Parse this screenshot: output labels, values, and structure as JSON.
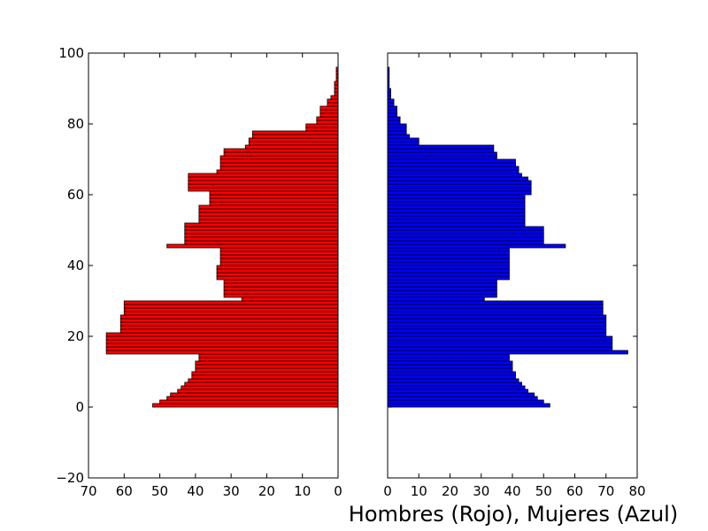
{
  "chart_data": {
    "type": "bar",
    "orientation": "horizontal",
    "xlabel": "Hombres (Rojo), Mujeres (Azul)",
    "grid": false,
    "shared_ylim": [
      -20,
      100
    ],
    "y_ticks": [
      100,
      80,
      60,
      40,
      20,
      0,
      -20
    ],
    "ages": [
      0,
      1,
      2,
      3,
      4,
      5,
      6,
      7,
      8,
      9,
      10,
      11,
      12,
      13,
      14,
      15,
      16,
      17,
      18,
      19,
      20,
      21,
      22,
      23,
      24,
      25,
      26,
      27,
      28,
      29,
      30,
      31,
      32,
      33,
      34,
      35,
      36,
      37,
      38,
      39,
      40,
      41,
      42,
      43,
      44,
      45,
      46,
      47,
      48,
      49,
      50,
      51,
      52,
      53,
      54,
      55,
      56,
      57,
      58,
      59,
      60,
      61,
      62,
      63,
      64,
      65,
      66,
      67,
      68,
      69,
      70,
      71,
      72,
      73,
      74,
      75,
      76,
      77,
      78,
      79,
      80,
      81,
      82,
      83,
      84,
      85,
      86,
      87,
      88,
      89,
      90,
      91,
      92,
      93,
      94,
      95
    ],
    "panels": [
      {
        "name": "hombres",
        "color": "#ff0000",
        "inverted_x": true,
        "xlim": [
          70,
          0
        ],
        "x_ticks": [
          70,
          60,
          50,
          40,
          30,
          20,
          10,
          0
        ],
        "values": [
          52,
          50,
          48,
          47,
          45,
          44,
          43,
          42,
          41,
          41,
          40,
          40,
          40,
          39,
          39,
          65,
          65,
          65,
          65,
          65,
          65,
          61,
          61,
          61,
          61,
          61,
          60,
          60,
          60,
          60,
          27,
          32,
          32,
          32,
          32,
          32,
          34,
          34,
          34,
          34,
          33,
          33,
          33,
          33,
          33,
          48,
          43,
          43,
          43,
          43,
          43,
          43,
          39,
          39,
          39,
          39,
          39,
          36,
          36,
          36,
          36,
          42,
          42,
          42,
          42,
          42,
          34,
          33,
          33,
          33,
          33,
          32,
          32,
          26,
          25,
          25,
          24,
          24,
          9,
          9,
          6,
          6,
          5,
          5,
          5,
          3,
          3,
          2,
          1,
          1,
          1,
          1,
          0.5,
          0.5,
          0.5,
          0.5
        ]
      },
      {
        "name": "mujeres",
        "color": "#0000ff",
        "inverted_x": false,
        "xlim": [
          0,
          80
        ],
        "x_ticks": [
          0,
          10,
          20,
          30,
          40,
          50,
          60,
          70,
          80
        ],
        "values": [
          52,
          50,
          48,
          47,
          45,
          44,
          43,
          42,
          41,
          41,
          40,
          40,
          40,
          39,
          39,
          77,
          72,
          72,
          72,
          72,
          70,
          70,
          70,
          70,
          70,
          70,
          69,
          69,
          69,
          69,
          31,
          35,
          35,
          35,
          35,
          35,
          39,
          39,
          39,
          39,
          39,
          39,
          39,
          39,
          39,
          57,
          50,
          50,
          50,
          50,
          50,
          44,
          44,
          44,
          44,
          44,
          44,
          44,
          44,
          44,
          46,
          46,
          46,
          46,
          45,
          43,
          42,
          42,
          41,
          41,
          35,
          35,
          34,
          34,
          10,
          10,
          7,
          6,
          6,
          6,
          4,
          4,
          3,
          3,
          3,
          2,
          2,
          1,
          1,
          1,
          0.5,
          0.5,
          0.5,
          0.5,
          0.5,
          0.5
        ]
      }
    ]
  }
}
